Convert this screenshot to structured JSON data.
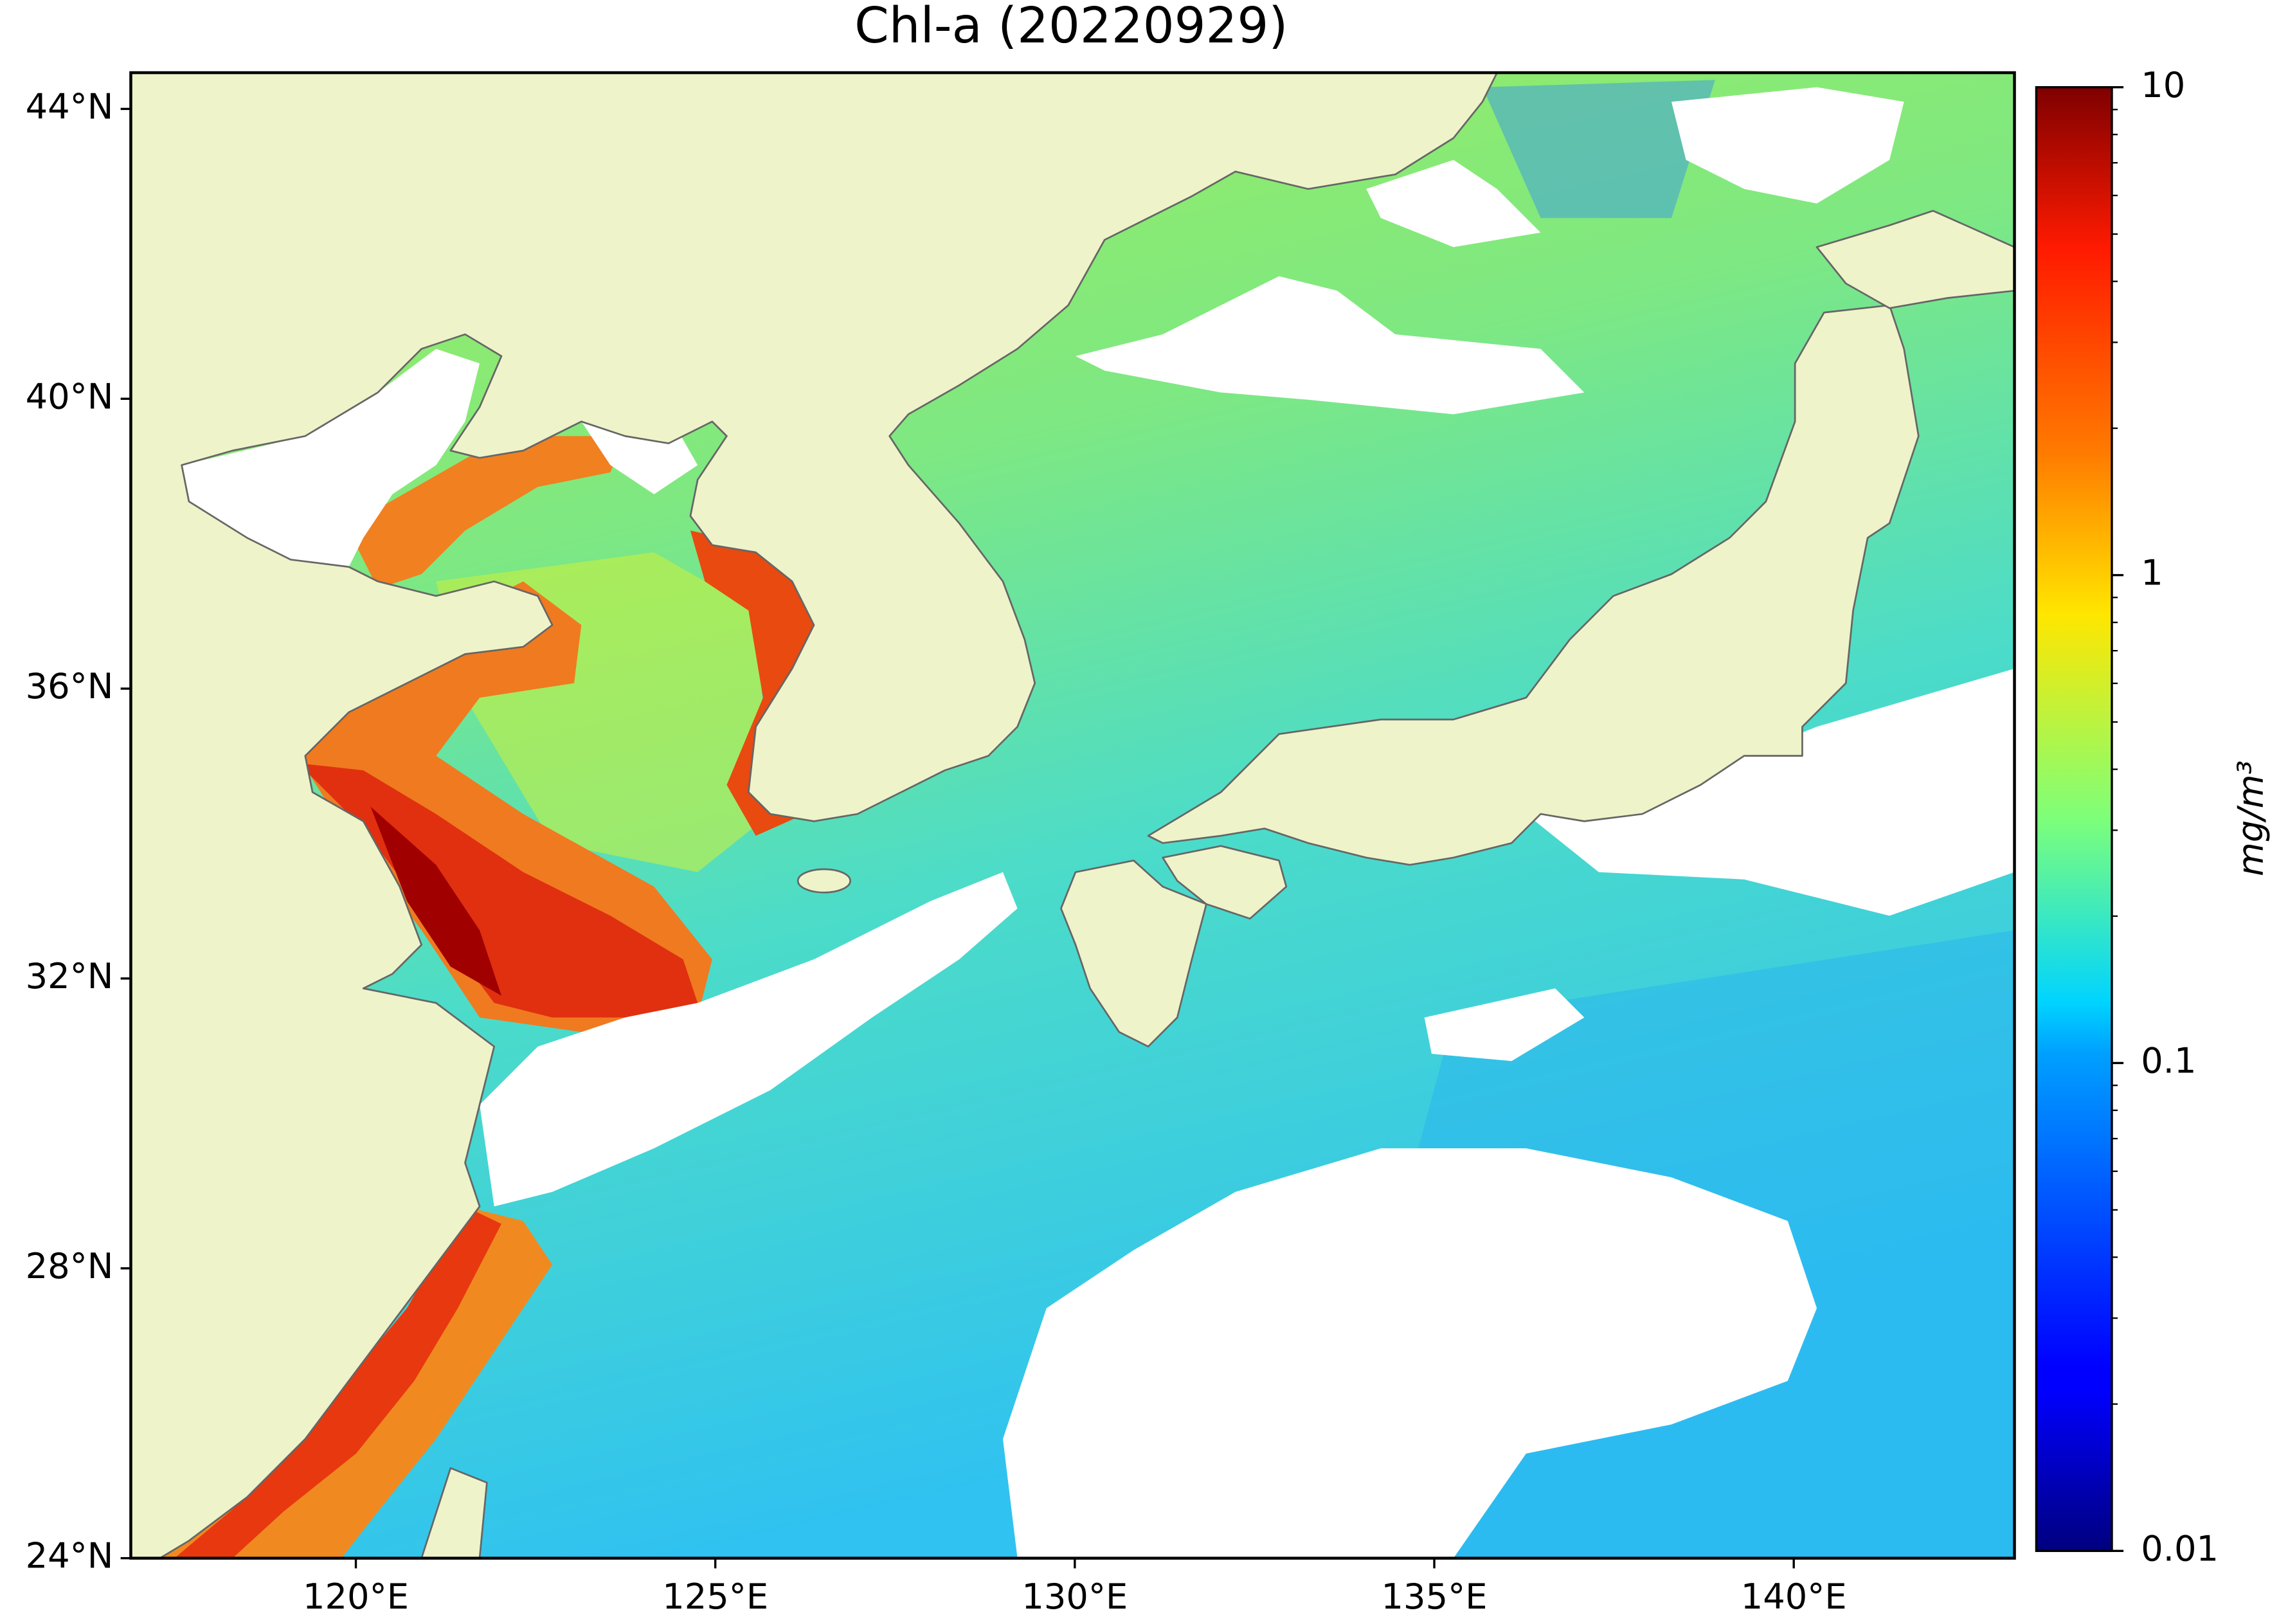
{
  "chart_data": {
    "type": "map",
    "title": "Chl-a (20220929)",
    "xlim": [
      116.87,
      143.07
    ],
    "ylim": [
      24,
      44.5
    ],
    "xticks": [
      {
        "value": 120,
        "label": "120°E"
      },
      {
        "value": 125,
        "label": "125°E"
      },
      {
        "value": 130,
        "label": "130°E"
      },
      {
        "value": 135,
        "label": "135°E"
      },
      {
        "value": 140,
        "label": "140°E"
      }
    ],
    "yticks": [
      {
        "value": 24,
        "label": "24°N"
      },
      {
        "value": 28,
        "label": "28°N"
      },
      {
        "value": 32,
        "label": "32°N"
      },
      {
        "value": 36,
        "label": "36°N"
      },
      {
        "value": 40,
        "label": "40°N"
      },
      {
        "value": 44,
        "label": "44°N"
      }
    ],
    "colorbar": {
      "label": "mg/m³",
      "colormap": "jet",
      "log_scale": true,
      "lim": [
        0.01,
        10
      ],
      "ticks": [
        0.01,
        0.1,
        1,
        10
      ]
    }
  }
}
